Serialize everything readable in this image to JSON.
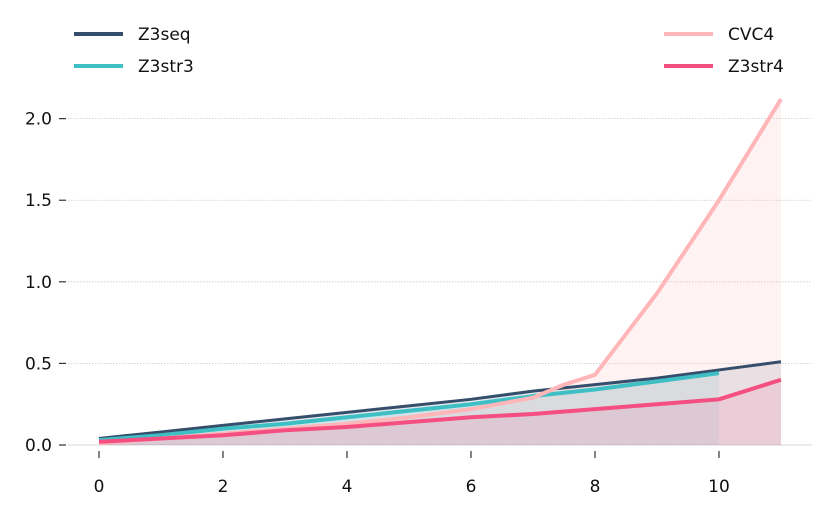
{
  "chart_data": {
    "type": "area",
    "title": "",
    "xlabel": "",
    "ylabel": "",
    "xlim": [
      -0.5,
      11.5
    ],
    "ylim": [
      0,
      2.2
    ],
    "xticks": [
      0,
      2,
      4,
      6,
      8,
      10
    ],
    "yticks": [
      0.0,
      0.5,
      1.0,
      1.5,
      2.0
    ],
    "xtick_labels": [
      "0",
      "2",
      "4",
      "6",
      "8",
      "10"
    ],
    "ytick_labels": [
      "0.0",
      "0.5",
      "1.0",
      "1.5",
      "2.0"
    ],
    "grid": "horizontal dotted",
    "legend": [
      "top-left",
      "top-right"
    ],
    "series": [
      {
        "name": "Z3seq",
        "color": "#344e6b",
        "line_width": "thin",
        "fill_opacity": 0.12,
        "x": [
          0,
          1,
          2,
          3,
          4,
          5,
          6,
          7,
          8,
          9,
          10,
          11
        ],
        "values": [
          0.04,
          0.08,
          0.12,
          0.16,
          0.2,
          0.24,
          0.28,
          0.33,
          0.37,
          0.41,
          0.46,
          0.51
        ]
      },
      {
        "name": "Z3str3",
        "color": "#3dbfc4",
        "line_width": "thick",
        "fill_opacity": 0.12,
        "x": [
          0,
          1,
          2,
          3,
          4,
          5,
          6,
          7,
          8,
          9,
          10
        ],
        "values": [
          0.03,
          0.06,
          0.1,
          0.13,
          0.17,
          0.21,
          0.25,
          0.3,
          0.34,
          0.39,
          0.44
        ]
      },
      {
        "name": "CVC4",
        "color": "#ffb6b9",
        "line_width": "thick",
        "fill_opacity": 0.18,
        "x": [
          0,
          1,
          2,
          3,
          4,
          5,
          6,
          7,
          7.5,
          8,
          9,
          10,
          11
        ],
        "values": [
          0.01,
          0.04,
          0.07,
          0.1,
          0.13,
          0.17,
          0.22,
          0.29,
          0.37,
          0.43,
          0.93,
          1.5,
          2.12
        ]
      },
      {
        "name": "Z3str4",
        "color": "#f54e80",
        "line_width": "thick",
        "fill_opacity": 0.12,
        "x": [
          0,
          1,
          2,
          3,
          4,
          5,
          6,
          7,
          8,
          9,
          10,
          11
        ],
        "values": [
          0.02,
          0.04,
          0.06,
          0.09,
          0.11,
          0.14,
          0.17,
          0.19,
          0.22,
          0.25,
          0.28,
          0.4
        ]
      }
    ]
  }
}
